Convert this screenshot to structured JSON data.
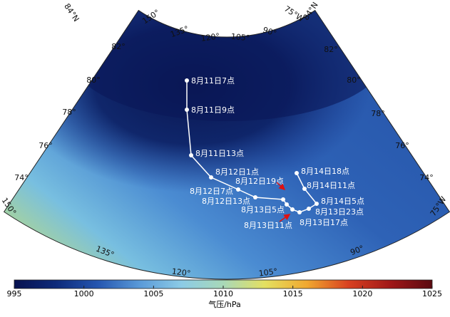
{
  "map": {
    "graticule_labels": [
      "84°N",
      "150°",
      "135°",
      "120°",
      "105°",
      "90°",
      "75°W",
      "84°N",
      "82°",
      "80°",
      "78°",
      "76°",
      "74°",
      "150°",
      "82°",
      "80°",
      "78°",
      "76°",
      "74°",
      "75°W",
      "135°",
      "120°",
      "105°",
      "90°"
    ],
    "track": {
      "color": "#ffffff",
      "points": [
        "8月11日7点",
        "8月11日9点",
        "8月11日13点",
        "8月12日1点",
        "8月12日7点",
        "8月12日13点",
        "8月12日19点",
        "8月13日5点",
        "8月13日11点",
        "8月13日17点",
        "8月13日23点",
        "8月14日5点",
        "8月14日11点",
        "8月14日18点"
      ]
    }
  },
  "colorbar": {
    "label": "气压/hPa",
    "lim": [
      995,
      1025
    ],
    "ticks": [
      995,
      1000,
      1005,
      1010,
      1015,
      1020,
      1025
    ],
    "colormap": [
      "#07114f",
      "#0d2a7a",
      "#2556b0",
      "#5a9ad8",
      "#8ccbe6",
      "#a8d8b8",
      "#e4e060",
      "#f0a830",
      "#d84020",
      "#a01818",
      "#5a0a10"
    ]
  }
}
